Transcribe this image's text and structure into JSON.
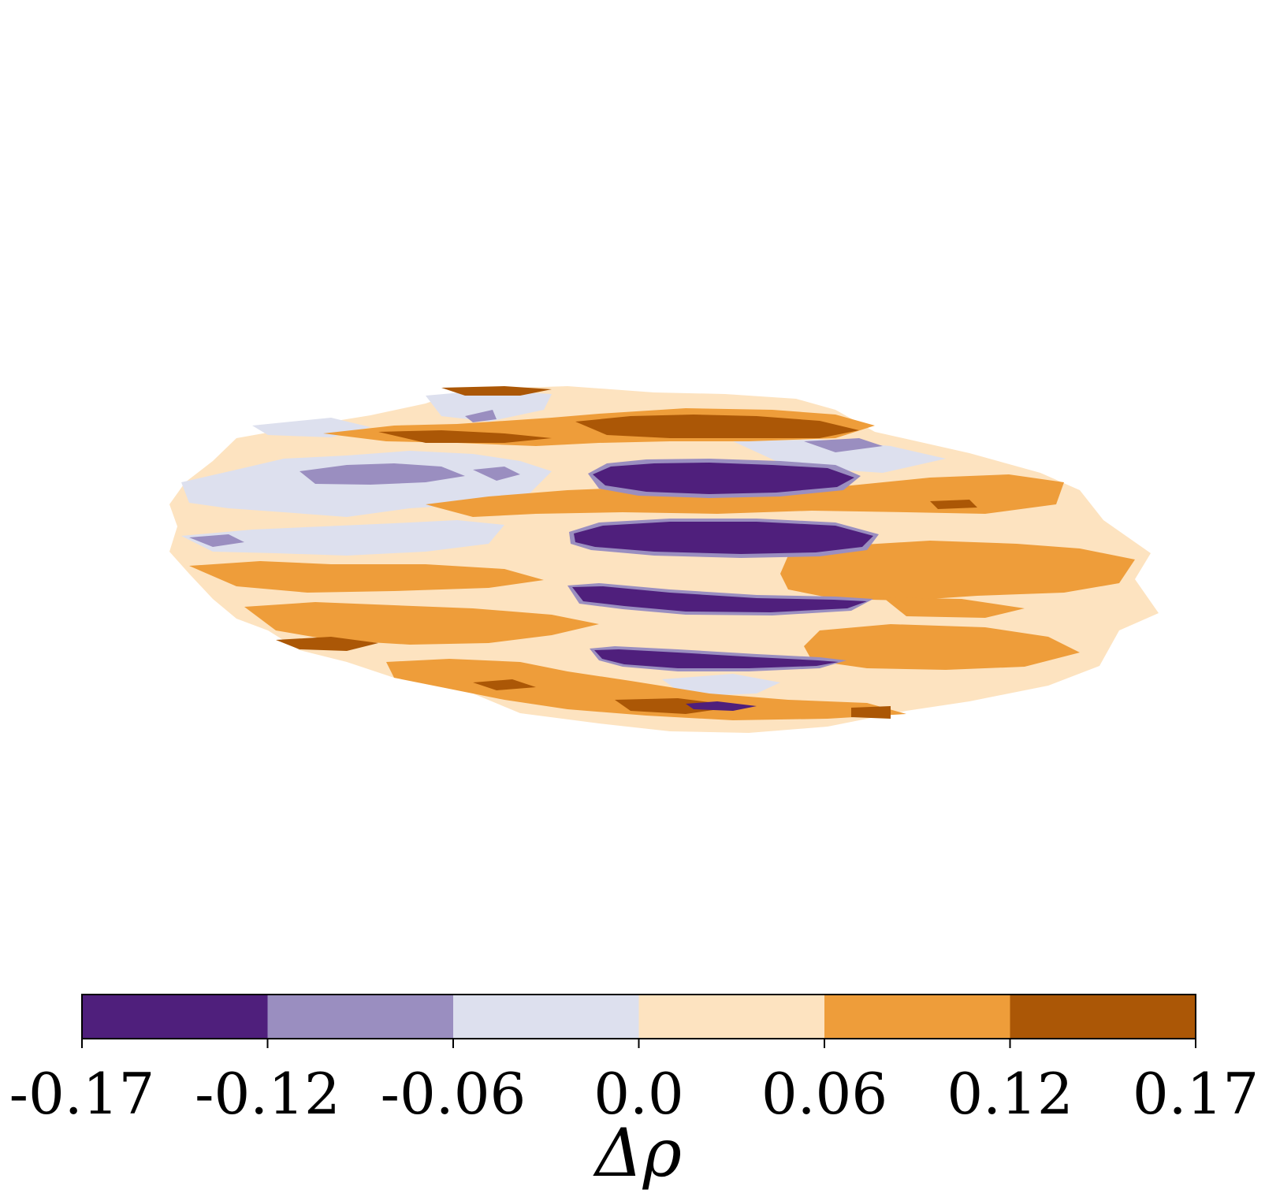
{
  "chart_data": {
    "type": "heatmap",
    "title": "",
    "xlabel": "",
    "ylabel": "",
    "colorbar": {
      "label": "Δρ",
      "orientation": "horizontal",
      "placement": "bottom",
      "range": [
        -0.17,
        0.17
      ],
      "ticks": [
        "-0.17",
        "-0.12",
        "-0.06",
        "0.0",
        "0.06",
        "0.12",
        "0.17"
      ],
      "bins": [
        {
          "from": -0.17,
          "to": -0.12,
          "color": "#4f1f7c"
        },
        {
          "from": -0.12,
          "to": -0.06,
          "color": "#9a8ec0"
        },
        {
          "from": -0.06,
          "to": 0.0,
          "color": "#dde0ee"
        },
        {
          "from": 0.0,
          "to": 0.06,
          "color": "#fde3c0"
        },
        {
          "from": 0.06,
          "to": 0.12,
          "color": "#ee9d3a"
        },
        {
          "from": 0.12,
          "to": 0.17,
          "color": "#ab5706"
        }
      ]
    },
    "map": {
      "description_free": true,
      "bands": [
        {
          "value": -0.09,
          "level": "0-"
        },
        {
          "value": -0.14,
          "level": "1-"
        },
        {
          "value": -0.03,
          "level": "2-"
        },
        {
          "value": 0.03,
          "level": "0+"
        },
        {
          "value": 0.09,
          "level": "1+"
        },
        {
          "value": 0.14,
          "level": "2+"
        }
      ]
    }
  }
}
